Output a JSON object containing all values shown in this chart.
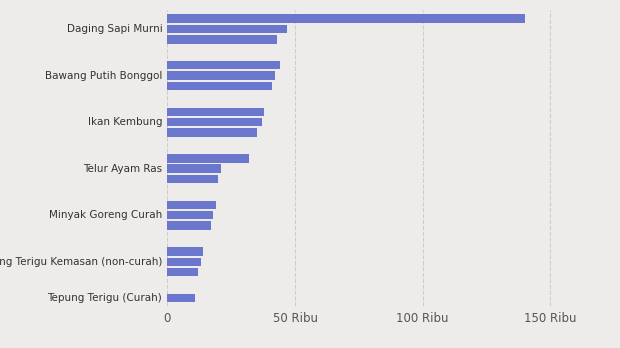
{
  "categories": [
    "Daging Sapi Murni",
    "Bawang Putih Bonggol",
    "Ikan Kembung",
    "Telur Ayam Ras",
    "Minyak Goreng Curah",
    "Tepung Terigu Kemasan (non-curah)",
    "Tepung Terigu (Curah)"
  ],
  "bars_per_category": [
    [
      140000,
      47000,
      43000
    ],
    [
      44000,
      42000,
      41000
    ],
    [
      38000,
      37000,
      35000
    ],
    [
      32000,
      21000,
      20000
    ],
    [
      19000,
      18000,
      17000
    ],
    [
      14000,
      13000,
      12000
    ],
    [
      11000
    ]
  ],
  "bar_color": "#6b77cc",
  "background_color": "#edecea",
  "xticks": [
    0,
    50000,
    100000,
    150000
  ],
  "xtick_labels": [
    "0",
    "50 Ribu",
    "100 Ribu",
    "150 Ribu"
  ],
  "xlim_max": 170000,
  "figsize": [
    6.2,
    3.48
  ],
  "dpi": 100
}
